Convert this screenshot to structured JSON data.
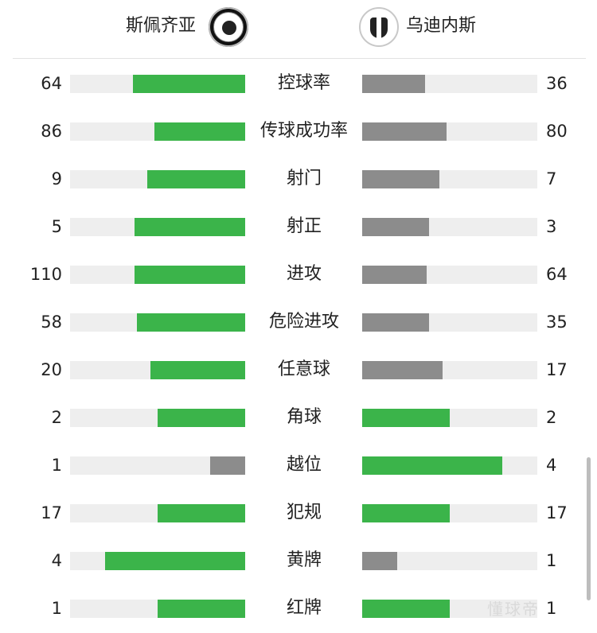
{
  "teams": {
    "home": {
      "name": "斯佩齐亚",
      "badge_icon": "spezia-crest-icon"
    },
    "away": {
      "name": "乌迪内斯",
      "badge_icon": "udinese-crest-icon"
    }
  },
  "colors": {
    "lead": "#3bb44a",
    "trail": "#8c8c8c",
    "track": "#eeeeee"
  },
  "stats": [
    {
      "label": "控球率",
      "home": "64",
      "away": "36",
      "home_fill": 0.64,
      "away_fill": 0.36,
      "home_color": "#3bb44a",
      "away_color": "#8c8c8c"
    },
    {
      "label": "传球成功率",
      "home": "86",
      "away": "80",
      "home_fill": 0.52,
      "away_fill": 0.48,
      "home_color": "#3bb44a",
      "away_color": "#8c8c8c"
    },
    {
      "label": "射门",
      "home": "9",
      "away": "7",
      "home_fill": 0.56,
      "away_fill": 0.44,
      "home_color": "#3bb44a",
      "away_color": "#8c8c8c"
    },
    {
      "label": "射正",
      "home": "5",
      "away": "3",
      "home_fill": 0.63,
      "away_fill": 0.38,
      "home_color": "#3bb44a",
      "away_color": "#8c8c8c"
    },
    {
      "label": "进攻",
      "home": "110",
      "away": "64",
      "home_fill": 0.63,
      "away_fill": 0.37,
      "home_color": "#3bb44a",
      "away_color": "#8c8c8c"
    },
    {
      "label": "危险进攻",
      "home": "58",
      "away": "35",
      "home_fill": 0.62,
      "away_fill": 0.38,
      "home_color": "#3bb44a",
      "away_color": "#8c8c8c"
    },
    {
      "label": "任意球",
      "home": "20",
      "away": "17",
      "home_fill": 0.54,
      "away_fill": 0.46,
      "home_color": "#3bb44a",
      "away_color": "#8c8c8c"
    },
    {
      "label": "角球",
      "home": "2",
      "away": "2",
      "home_fill": 0.5,
      "away_fill": 0.5,
      "home_color": "#3bb44a",
      "away_color": "#3bb44a"
    },
    {
      "label": "越位",
      "home": "1",
      "away": "4",
      "home_fill": 0.2,
      "away_fill": 0.8,
      "home_color": "#8c8c8c",
      "away_color": "#3bb44a"
    },
    {
      "label": "犯规",
      "home": "17",
      "away": "17",
      "home_fill": 0.5,
      "away_fill": 0.5,
      "home_color": "#3bb44a",
      "away_color": "#3bb44a"
    },
    {
      "label": "黄牌",
      "home": "4",
      "away": "1",
      "home_fill": 0.8,
      "away_fill": 0.2,
      "home_color": "#3bb44a",
      "away_color": "#8c8c8c"
    },
    {
      "label": "红牌",
      "home": "1",
      "away": "1",
      "home_fill": 0.5,
      "away_fill": 0.5,
      "home_color": "#3bb44a",
      "away_color": "#3bb44a"
    }
  ],
  "watermark": "懂球帝"
}
